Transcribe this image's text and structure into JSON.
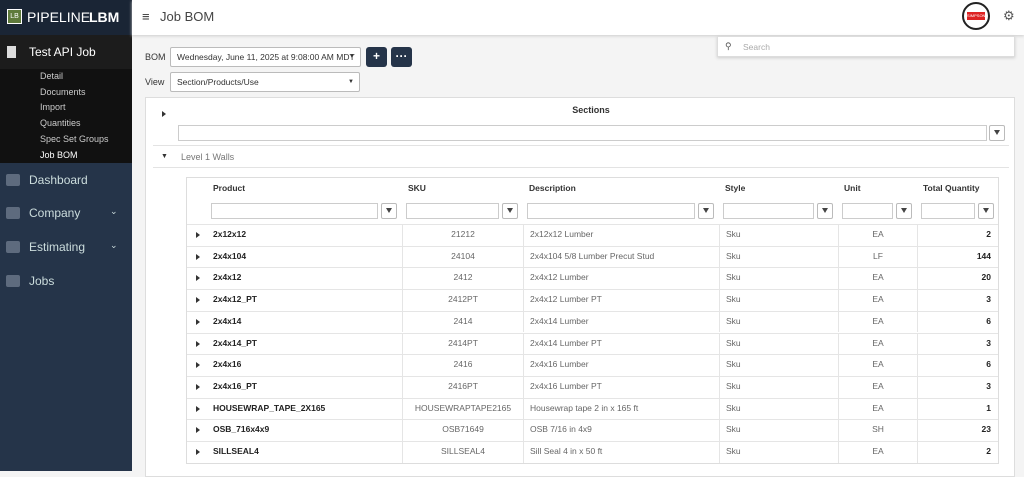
{
  "sidebar": {
    "logo_badge": "LB",
    "logo_text": "PIPELINE",
    "logo_bold": "LBM",
    "job": "Test API Job",
    "job_links": [
      "Detail",
      "Documents",
      "Import",
      "Quantities",
      "Spec Set Groups",
      "Job BOM"
    ],
    "nav": [
      "Dashboard",
      "Company",
      "Estimating",
      "Jobs"
    ]
  },
  "header": {
    "title": "Job BOM",
    "search_placeholder": "Search",
    "avatar": "SIMPSON"
  },
  "controls": {
    "bom_label": "BOM",
    "bom_value": "Wednesday, June 11, 2025 at 9:08:00 AM MDT",
    "view_label": "View",
    "view_value": "Section/Products/Use"
  },
  "sections": {
    "title": "Sections",
    "group": "Level 1 Walls"
  },
  "table": {
    "columns": [
      "Product",
      "SKU",
      "Description",
      "Style",
      "Unit",
      "Total Quantity"
    ],
    "rows": [
      [
        "2x12x12",
        "21212",
        "2x12x12 Lumber",
        "Sku",
        "EA",
        2
      ],
      [
        "2x4x104",
        "24104",
        "2x4x104 5/8 Lumber Precut Stud",
        "Sku",
        "LF",
        144
      ],
      [
        "2x4x12",
        "2412",
        "2x4x12 Lumber",
        "Sku",
        "EA",
        20
      ],
      [
        "2x4x12_PT",
        "2412PT",
        "2x4x12 Lumber PT",
        "Sku",
        "EA",
        3
      ],
      [
        "2x4x14",
        "2414",
        "2x4x14 Lumber",
        "Sku",
        "EA",
        6
      ],
      [
        "2x4x14_PT",
        "2414PT",
        "2x4x14 Lumber PT",
        "Sku",
        "EA",
        3
      ],
      [
        "2x4x16",
        "2416",
        "2x4x16 Lumber",
        "Sku",
        "EA",
        6
      ],
      [
        "2x4x16_PT",
        "2416PT",
        "2x4x16 Lumber PT",
        "Sku",
        "EA",
        3
      ],
      [
        "HOUSEWRAP_TAPE_2X165",
        "HOUSEWRAPTAPE2165",
        "Housewrap tape 2 in x 165 ft",
        "Sku",
        "EA",
        1
      ],
      [
        "OSB_716x4x9",
        "OSB71649",
        "OSB 7/16 in 4x9",
        "Sku",
        "SH",
        23
      ],
      [
        "SILLSEAL4",
        "SILLSEAL4",
        "Sill Seal 4 in x 50 ft",
        "Sku",
        "EA",
        2
      ]
    ]
  }
}
